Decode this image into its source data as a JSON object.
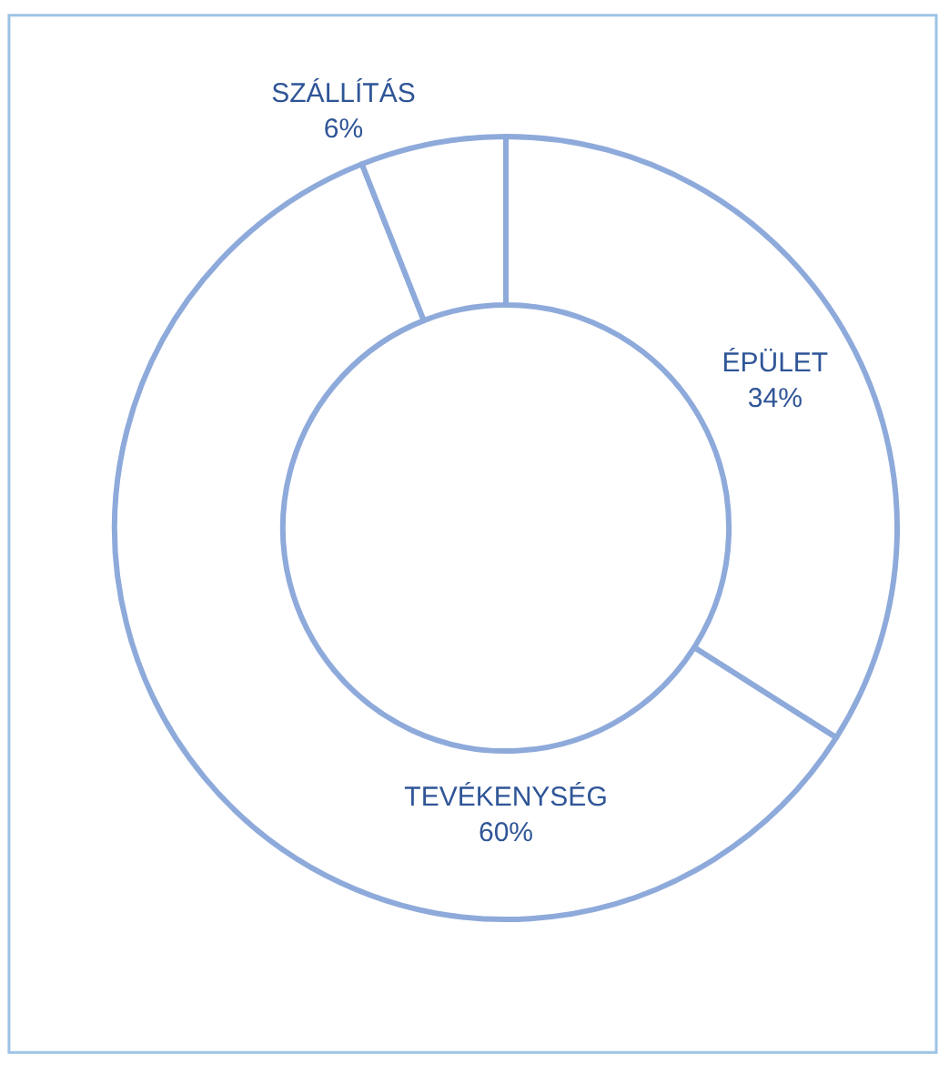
{
  "chart_data": {
    "type": "donut",
    "categories": [
      "ÉPÜLET",
      "TEVÉKENYSÉG",
      "SZÁLLÍTÁS"
    ],
    "values": [
      34,
      60,
      6
    ],
    "value_labels": [
      "34%",
      "60%",
      "6%"
    ],
    "colors": [
      "#ffffff",
      "#ffffff",
      "#ffffff"
    ],
    "legend": false
  }
}
